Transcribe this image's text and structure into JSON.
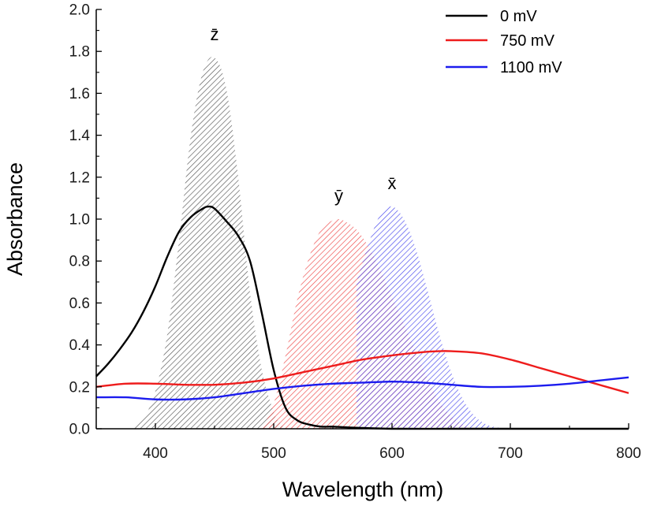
{
  "chart_data": {
    "type": "line",
    "xlabel": "Wavelength (nm)",
    "ylabel": "Absorbance",
    "xlim": [
      350,
      800
    ],
    "ylim": [
      0.0,
      2.0
    ],
    "x_ticks": [
      400,
      500,
      600,
      700,
      800
    ],
    "x_tick_labels": [
      "400",
      "500",
      "600",
      "700",
      "800"
    ],
    "y_ticks": [
      0.0,
      0.2,
      0.4,
      0.6,
      0.8,
      1.0,
      1.2,
      1.4,
      1.6,
      1.8,
      2.0
    ],
    "y_tick_labels": [
      "0.0",
      "0.2",
      "0.4",
      "0.6",
      "0.8",
      "1.0",
      "1.2",
      "1.4",
      "1.6",
      "1.8",
      "2.0"
    ],
    "grid": false,
    "legend_position": "top-right",
    "series": [
      {
        "name": "0 mV",
        "color": "#000000",
        "x": [
          350,
          360,
          370,
          380,
          390,
          400,
          410,
          420,
          430,
          440,
          445,
          450,
          460,
          470,
          480,
          490,
          500,
          510,
          520,
          530,
          540,
          550,
          570,
          600,
          650,
          700,
          750,
          800
        ],
        "y": [
          0.25,
          0.31,
          0.38,
          0.46,
          0.56,
          0.68,
          0.82,
          0.94,
          1.01,
          1.05,
          1.06,
          1.05,
          0.99,
          0.92,
          0.8,
          0.55,
          0.28,
          0.1,
          0.04,
          0.02,
          0.01,
          0.01,
          0.005,
          0.0,
          0.0,
          0.0,
          0.0,
          0.0
        ]
      },
      {
        "name": "750 mV",
        "color": "#ee1c1c",
        "x": [
          350,
          375,
          400,
          425,
          450,
          475,
          500,
          525,
          550,
          575,
          600,
          625,
          640,
          650,
          675,
          700,
          725,
          750,
          775,
          800
        ],
        "y": [
          0.2,
          0.215,
          0.215,
          0.21,
          0.21,
          0.22,
          0.24,
          0.27,
          0.3,
          0.33,
          0.35,
          0.365,
          0.37,
          0.37,
          0.36,
          0.33,
          0.29,
          0.25,
          0.21,
          0.17
        ]
      },
      {
        "name": "1100 mV",
        "color": "#1c1cee",
        "x": [
          350,
          375,
          400,
          425,
          450,
          475,
          500,
          525,
          550,
          575,
          600,
          625,
          650,
          675,
          700,
          725,
          750,
          775,
          800
        ],
        "y": [
          0.15,
          0.15,
          0.14,
          0.14,
          0.15,
          0.17,
          0.19,
          0.205,
          0.215,
          0.22,
          0.225,
          0.22,
          0.21,
          0.2,
          0.2,
          0.205,
          0.215,
          0.23,
          0.245
        ]
      }
    ],
    "shaded_curves": [
      {
        "label": "z̄",
        "color": "#555555",
        "x": [
          380,
          390,
          400,
          410,
          420,
          430,
          440,
          450,
          460,
          470,
          480,
          490,
          500,
          505,
          510
        ],
        "y": [
          0.0,
          0.05,
          0.18,
          0.45,
          0.9,
          1.4,
          1.7,
          1.77,
          1.62,
          1.2,
          0.65,
          0.28,
          0.08,
          0.03,
          0.0
        ]
      },
      {
        "label": "ȳ",
        "color": "#ee4444",
        "x": [
          490,
          500,
          510,
          520,
          530,
          540,
          550,
          555,
          560,
          570,
          580,
          590,
          600,
          610,
          620,
          630,
          640,
          650,
          660,
          670
        ],
        "y": [
          0.0,
          0.12,
          0.35,
          0.62,
          0.82,
          0.95,
          0.995,
          1.0,
          0.99,
          0.95,
          0.87,
          0.76,
          0.63,
          0.5,
          0.37,
          0.24,
          0.13,
          0.06,
          0.02,
          0.0
        ]
      },
      {
        "label": "x̄",
        "color": "#4444ee",
        "x": [
          570,
          580,
          590,
          600,
          610,
          620,
          630,
          640,
          650,
          660,
          670,
          680,
          690,
          700
        ],
        "y": [
          0.7,
          0.88,
          1.02,
          1.06,
          1.0,
          0.86,
          0.66,
          0.45,
          0.27,
          0.14,
          0.06,
          0.02,
          0.005,
          0.0
        ]
      }
    ]
  }
}
